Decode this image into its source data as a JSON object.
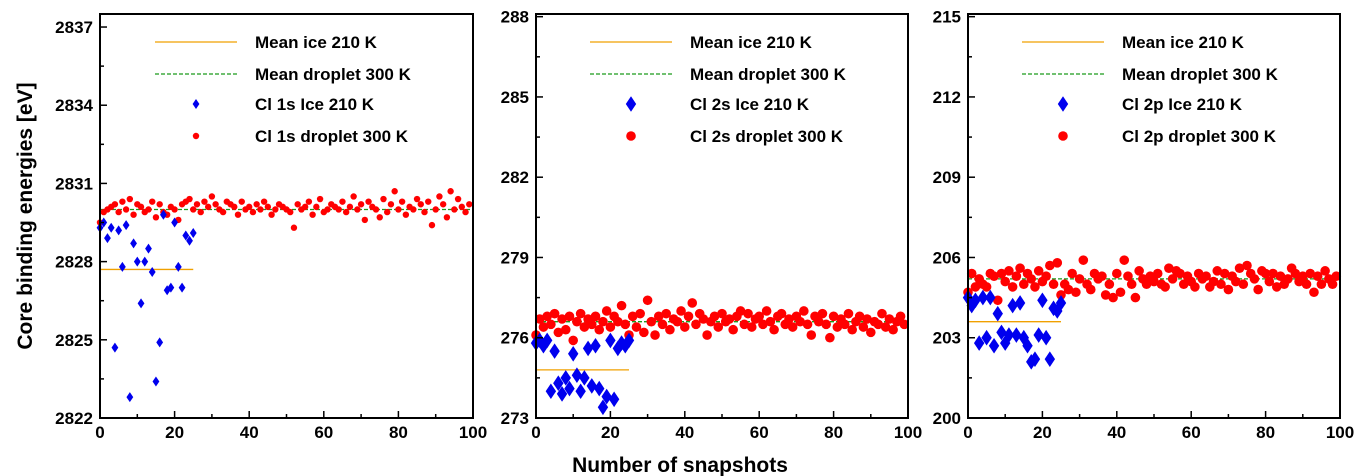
{
  "figure": {
    "ylabel": "Core binding energies [eV]",
    "xlabel": "Number of snapshots"
  },
  "chart_data": [
    {
      "type": "scatter",
      "xlim": [
        0,
        100
      ],
      "ylim": [
        2822,
        2837.5
      ],
      "x_ticks": [
        0,
        20,
        40,
        60,
        80,
        100
      ],
      "y_ticks": [
        2822,
        2825,
        2828,
        2831,
        2834,
        2837
      ],
      "series_colors": {
        "ice": "#0000ee",
        "droplet": "#ff0000",
        "mean_ice": "#f0a000",
        "mean_droplet": "#1a9a1a"
      },
      "legend": [
        "Mean ice 210 K",
        "Mean droplet 300 K",
        "Cl 1s Ice 210 K",
        "Cl 1s droplet 300 K"
      ],
      "mean_ice": {
        "x": [
          0,
          25
        ],
        "y": 2827.7
      },
      "mean_droplet": {
        "x": [
          0,
          100
        ],
        "y": 2830.0
      },
      "ice": {
        "x": [
          0,
          1,
          2,
          3,
          4,
          5,
          6,
          7,
          8,
          9,
          10,
          11,
          12,
          13,
          14,
          15,
          16,
          17,
          18,
          19,
          20,
          21,
          22,
          23,
          24,
          25
        ],
        "y": [
          2829.3,
          2829.5,
          2828.9,
          2829.3,
          2824.7,
          2829.2,
          2827.8,
          2829.4,
          2822.8,
          2828.7,
          2828.0,
          2826.4,
          2828.0,
          2828.5,
          2827.6,
          2823.4,
          2824.9,
          2829.8,
          2826.9,
          2827.0,
          2829.5,
          2827.8,
          2827.0,
          2829.0,
          2828.8,
          2829.1
        ]
      },
      "droplet": {
        "x": [
          0,
          1,
          2,
          3,
          4,
          5,
          6,
          7,
          8,
          9,
          10,
          11,
          12,
          13,
          14,
          15,
          16,
          17,
          18,
          19,
          20,
          21,
          22,
          23,
          24,
          25,
          26,
          27,
          28,
          29,
          30,
          31,
          32,
          33,
          34,
          35,
          36,
          37,
          38,
          39,
          40,
          41,
          42,
          43,
          44,
          45,
          46,
          47,
          48,
          49,
          50,
          51,
          52,
          53,
          54,
          55,
          56,
          57,
          58,
          59,
          60,
          61,
          62,
          63,
          64,
          65,
          66,
          67,
          68,
          69,
          70,
          71,
          72,
          73,
          74,
          75,
          76,
          77,
          78,
          79,
          80,
          81,
          82,
          83,
          84,
          85,
          86,
          87,
          88,
          89,
          90,
          91,
          92,
          93,
          94,
          95,
          96,
          97,
          98,
          99
        ],
        "y": [
          2829.5,
          2829.9,
          2830.0,
          2830.1,
          2830.2,
          2829.9,
          2830.3,
          2830.0,
          2830.4,
          2829.8,
          2830.2,
          2830.1,
          2829.9,
          2830.0,
          2830.3,
          2829.7,
          2830.2,
          2829.9,
          2829.8,
          2830.1,
          2830.0,
          2829.6,
          2830.2,
          2830.3,
          2830.4,
          2830.0,
          2830.2,
          2829.9,
          2830.3,
          2830.1,
          2830.5,
          2830.2,
          2830.0,
          2829.9,
          2830.3,
          2830.2,
          2830.1,
          2829.8,
          2830.3,
          2830.0,
          2830.1,
          2829.9,
          2830.2,
          2830.0,
          2830.3,
          2830.1,
          2829.8,
          2830.0,
          2830.2,
          2830.1,
          2830.0,
          2829.9,
          2829.3,
          2830.2,
          2830.0,
          2830.1,
          2830.3,
          2829.8,
          2830.1,
          2830.4,
          2829.9,
          2830.0,
          2830.2,
          2830.1,
          2830.0,
          2830.3,
          2829.9,
          2830.1,
          2830.5,
          2830.0,
          2830.2,
          2829.6,
          2830.3,
          2830.1,
          2830.0,
          2829.7,
          2830.4,
          2829.9,
          2830.2,
          2830.7,
          2830.0,
          2830.3,
          2829.8,
          2830.1,
          2830.0,
          2830.4,
          2830.2,
          2829.9,
          2830.3,
          2829.4,
          2830.0,
          2830.5,
          2830.2,
          2829.7,
          2830.7,
          2830.0,
          2830.4,
          2830.1,
          2829.9,
          2830.2
        ]
      }
    },
    {
      "type": "scatter",
      "xlim": [
        0,
        100
      ],
      "ylim": [
        273,
        288.1
      ],
      "x_ticks": [
        0,
        20,
        40,
        60,
        80,
        100
      ],
      "y_ticks": [
        273,
        276,
        279,
        282,
        285,
        288
      ],
      "series_colors": {
        "ice": "#0000ee",
        "droplet": "#ff0000",
        "mean_ice": "#f0a000",
        "mean_droplet": "#1a9a1a"
      },
      "legend": [
        "Mean ice 210 K",
        "Mean droplet 300 K",
        "Cl 2s Ice 210 K",
        "Cl 2s droplet 300 K"
      ],
      "mean_ice": {
        "x": [
          0,
          25
        ],
        "y": 274.8
      },
      "mean_droplet": {
        "x": [
          0,
          100
        ],
        "y": 276.6
      },
      "ice": {
        "x": [
          0,
          1,
          2,
          3,
          4,
          5,
          6,
          7,
          8,
          9,
          10,
          11,
          12,
          13,
          14,
          15,
          16,
          17,
          18,
          19,
          20,
          21,
          22,
          23,
          24,
          25
        ],
        "y": [
          275.8,
          275.9,
          275.7,
          275.9,
          274.0,
          275.5,
          274.3,
          273.9,
          274.5,
          274.1,
          275.4,
          274.6,
          274.0,
          274.5,
          275.6,
          274.2,
          275.7,
          274.1,
          273.4,
          273.8,
          275.9,
          273.7,
          275.6,
          275.8,
          275.7,
          275.9
        ],
        "marker_note": ""
      },
      "droplet": {
        "x": [
          0,
          1,
          2,
          3,
          4,
          5,
          6,
          7,
          8,
          9,
          10,
          11,
          12,
          13,
          14,
          15,
          16,
          17,
          18,
          19,
          20,
          21,
          22,
          23,
          24,
          25,
          26,
          27,
          28,
          29,
          30,
          31,
          32,
          33,
          34,
          35,
          36,
          37,
          38,
          39,
          40,
          41,
          42,
          43,
          44,
          45,
          46,
          47,
          48,
          49,
          50,
          51,
          52,
          53,
          54,
          55,
          56,
          57,
          58,
          59,
          60,
          61,
          62,
          63,
          64,
          65,
          66,
          67,
          68,
          69,
          70,
          71,
          72,
          73,
          74,
          75,
          76,
          77,
          78,
          79,
          80,
          81,
          82,
          83,
          84,
          85,
          86,
          87,
          88,
          89,
          90,
          91,
          92,
          93,
          94,
          95,
          96,
          97,
          98,
          99
        ],
        "y": [
          276.1,
          276.7,
          276.4,
          276.8,
          276.5,
          276.9,
          276.2,
          276.7,
          276.3,
          276.8,
          275.9,
          276.6,
          276.9,
          276.4,
          276.7,
          276.5,
          276.8,
          276.3,
          276.6,
          277.0,
          276.4,
          276.8,
          276.6,
          277.2,
          276.5,
          276.1,
          276.8,
          276.4,
          276.9,
          276.2,
          277.4,
          276.6,
          276.1,
          276.8,
          276.5,
          276.9,
          276.3,
          276.7,
          276.6,
          277.0,
          276.4,
          276.8,
          277.3,
          276.5,
          276.9,
          276.7,
          276.1,
          276.6,
          276.8,
          276.4,
          276.9,
          276.6,
          276.7,
          276.3,
          276.8,
          277.0,
          276.5,
          276.9,
          276.4,
          276.7,
          276.8,
          276.5,
          277.0,
          276.6,
          276.3,
          276.8,
          276.9,
          276.5,
          276.7,
          276.4,
          276.8,
          276.6,
          277.0,
          276.5,
          276.1,
          276.8,
          276.6,
          276.9,
          276.5,
          276.0,
          276.8,
          276.4,
          276.7,
          276.5,
          276.9,
          276.3,
          276.6,
          276.8,
          276.4,
          276.7,
          276.2,
          276.6,
          276.5,
          276.9,
          276.4,
          276.7,
          276.3,
          276.6,
          276.8,
          276.5
        ]
      }
    },
    {
      "type": "scatter",
      "xlim": [
        0,
        100
      ],
      "ylim": [
        200,
        215.1
      ],
      "x_ticks": [
        0,
        20,
        40,
        60,
        80,
        100
      ],
      "y_ticks": [
        200,
        203,
        206,
        209,
        212,
        215
      ],
      "series_colors": {
        "ice": "#0000ee",
        "droplet": "#ff0000",
        "mean_ice": "#f0a000",
        "mean_droplet": "#1a9a1a"
      },
      "legend": [
        "Mean ice 210 K",
        "Mean droplet 300 K",
        "Cl 2p Ice 210 K",
        "Cl 2p droplet 300 K"
      ],
      "mean_ice": {
        "x": [
          0,
          25
        ],
        "y": 203.6
      },
      "mean_droplet": {
        "x": [
          0,
          100
        ],
        "y": 205.2
      },
      "ice": {
        "x": [
          0,
          1,
          2,
          3,
          4,
          5,
          6,
          7,
          8,
          9,
          10,
          11,
          12,
          13,
          14,
          15,
          16,
          17,
          18,
          19,
          20,
          21,
          22,
          23,
          24,
          25
        ],
        "y": [
          204.5,
          204.2,
          204.4,
          202.8,
          204.5,
          203.0,
          204.5,
          202.7,
          203.9,
          203.2,
          202.8,
          203.1,
          204.2,
          203.1,
          204.3,
          203.0,
          202.7,
          202.1,
          202.2,
          203.1,
          204.4,
          203.0,
          202.2,
          204.1,
          204.0,
          204.3
        ]
      },
      "droplet": {
        "x": [
          0,
          1,
          2,
          3,
          4,
          5,
          6,
          7,
          8,
          9,
          10,
          11,
          12,
          13,
          14,
          15,
          16,
          17,
          18,
          19,
          20,
          21,
          22,
          23,
          24,
          25,
          26,
          27,
          28,
          29,
          30,
          31,
          32,
          33,
          34,
          35,
          36,
          37,
          38,
          39,
          40,
          41,
          42,
          43,
          44,
          45,
          46,
          47,
          48,
          49,
          50,
          51,
          52,
          53,
          54,
          55,
          56,
          57,
          58,
          59,
          60,
          61,
          62,
          63,
          64,
          65,
          66,
          67,
          68,
          69,
          70,
          71,
          72,
          73,
          74,
          75,
          76,
          77,
          78,
          79,
          80,
          81,
          82,
          83,
          84,
          85,
          86,
          87,
          88,
          89,
          90,
          91,
          92,
          93,
          94,
          95,
          96,
          97,
          98,
          99
        ],
        "y": [
          204.7,
          205.4,
          204.9,
          205.2,
          205.0,
          204.9,
          205.4,
          205.3,
          204.4,
          205.4,
          205.1,
          205.5,
          204.9,
          205.3,
          205.6,
          205.0,
          205.4,
          205.2,
          204.9,
          205.5,
          205.1,
          205.3,
          205.7,
          205.0,
          205.8,
          204.6,
          205.0,
          204.8,
          205.4,
          204.7,
          205.2,
          205.9,
          205.0,
          204.8,
          205.4,
          205.2,
          205.3,
          204.6,
          205.0,
          204.5,
          205.4,
          204.7,
          205.9,
          205.3,
          205.0,
          204.5,
          205.5,
          205.2,
          205.0,
          205.3,
          205.1,
          205.4,
          205.0,
          204.9,
          205.6,
          205.2,
          205.5,
          205.4,
          205.0,
          205.3,
          205.1,
          204.9,
          205.4,
          205.2,
          205.3,
          204.9,
          205.1,
          205.5,
          205.0,
          205.4,
          204.8,
          205.3,
          205.1,
          205.6,
          205.0,
          205.7,
          205.4,
          205.2,
          204.8,
          205.5,
          205.4,
          205.1,
          205.4,
          204.9,
          205.3,
          205.0,
          205.2,
          205.6,
          205.4,
          205.1,
          205.3,
          205.0,
          205.4,
          204.7,
          205.3,
          205.0,
          205.5,
          205.2,
          205.0,
          205.3
        ]
      }
    }
  ]
}
